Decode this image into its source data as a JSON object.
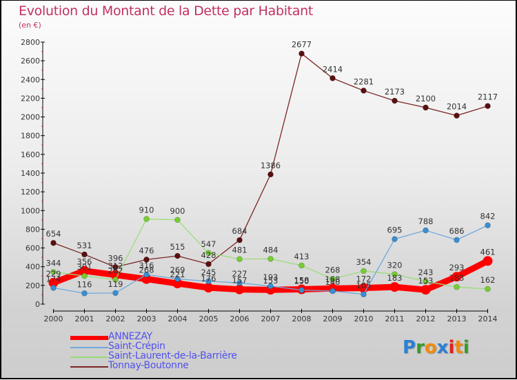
{
  "header": {
    "title": "Evolution du Montant de la Dette par Habitant",
    "subtitle": "(en €)"
  },
  "logo": {
    "letters": [
      {
        "char": "P",
        "color": "#2a7fd4"
      },
      {
        "char": "r",
        "color": "#3a9a2a"
      },
      {
        "char": "o",
        "color": "#f08a10"
      },
      {
        "char": "x",
        "color": "#2a7fd4"
      },
      {
        "char": "i",
        "color": "#e02020"
      },
      {
        "char": "t",
        "color": "#f08a10"
      },
      {
        "char": "i",
        "color": "#3a9a2a"
      }
    ]
  },
  "chart_data": {
    "type": "line",
    "title": "Evolution du Montant de la Dette par Habitant",
    "subtitle": "(en €)",
    "xlabel": "",
    "ylabel": "",
    "x": [
      "2000",
      "2001",
      "2002",
      "2003",
      "2004",
      "2005",
      "2006",
      "2007",
      "2008",
      "2009",
      "2010",
      "2011",
      "2012",
      "2013",
      "2014"
    ],
    "ylim": [
      0,
      2800
    ],
    "yticks": [
      0,
      200,
      400,
      600,
      800,
      1000,
      1200,
      1400,
      1600,
      1800,
      2000,
      2200,
      2400,
      2600,
      2800
    ],
    "grid": false,
    "legend_position": "bottom-left",
    "series": [
      {
        "name": "ANNEZAY",
        "color": "#ff0000",
        "point_color": "#ff0000",
        "emphasis": true,
        "values": [
          229,
          356,
          312,
          268,
          221,
          176,
          157,
          153,
          158,
          168,
          172,
          183,
          153,
          293,
          461
        ]
      },
      {
        "name": "Saint-Crépin",
        "color": "#6fa8dc",
        "point_color": "#3a8ed0",
        "emphasis": false,
        "values": [
          174,
          116,
          119,
          316,
          269,
          245,
          227,
          193,
          150,
          140,
          105,
          695,
          788,
          686,
          842
        ]
      },
      {
        "name": "Saint-Laurent-de-la-Barrière",
        "color": "#99dd77",
        "point_color": "#77cc33",
        "emphasis": false,
        "values": [
          344,
          301,
          262,
          910,
          900,
          547,
          481,
          484,
          413,
          268,
          354,
          320,
          243,
          183,
          162
        ]
      },
      {
        "name": "Tonnay-Boutonne",
        "color": "#7a2424",
        "point_color": "#5a1010",
        "emphasis": false,
        "values": [
          654,
          531,
          396,
          476,
          515,
          428,
          684,
          1386,
          2677,
          2414,
          2281,
          2173,
          2100,
          2014,
          2117
        ]
      }
    ]
  }
}
